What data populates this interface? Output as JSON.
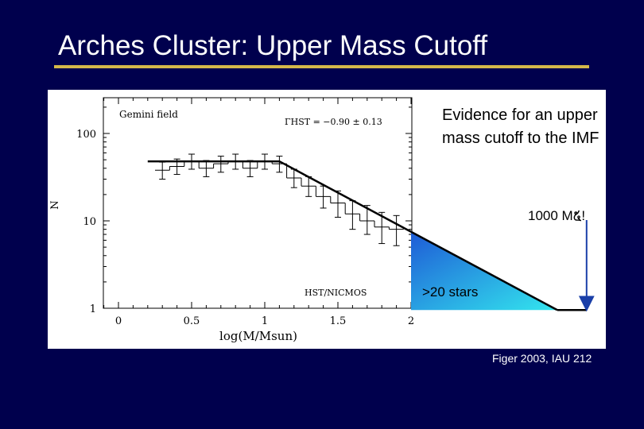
{
  "slide": {
    "title": "Arches Cluster: Upper Mass Cutoff",
    "caption": "Evidence for an upper mass cutoff to the IMF",
    "mass_label": "1000 M໕!",
    "stars_label": ">20 stars",
    "citation": "Figer 2003, IAU 212"
  },
  "colors": {
    "background": "#00004d",
    "title_rule": "#d4b84a",
    "wedge_top": "#1e5bd6",
    "wedge_bottom": "#33e6ee",
    "arrow": "#1a3fa8"
  },
  "chart_data": {
    "type": "line",
    "title": "",
    "field_label": "Gemini  field",
    "slope_label": "ΓHST  =  −0.90  ±  0.13",
    "instrument_label": "HST/NICMOS",
    "xlabel": "log(M/Msun)",
    "ylabel": "N",
    "xscale": "linear",
    "yscale": "log",
    "xlim": [
      -0.1,
      2.0
    ],
    "ylim": [
      1,
      200
    ],
    "xticks": [
      0,
      0.5,
      1,
      1.5,
      2
    ],
    "xticklabels": [
      "0",
      "0.5",
      "1",
      "1.5",
      "2"
    ],
    "yticks": [
      1,
      10,
      100
    ],
    "yticklabels": [
      "1",
      "10",
      "100"
    ],
    "histogram": {
      "x": [
        0.3,
        0.4,
        0.5,
        0.6,
        0.7,
        0.8,
        0.9,
        1.0,
        1.1,
        1.2,
        1.3,
        1.4,
        1.5,
        1.6,
        1.7,
        1.8,
        1.9
      ],
      "y": [
        38,
        42,
        48,
        40,
        45,
        48,
        40,
        48,
        45,
        31,
        25,
        19,
        16,
        12,
        10,
        8.5,
        8
      ],
      "err_low": [
        30,
        34,
        39,
        32,
        36,
        39,
        32,
        39,
        36,
        24,
        19,
        14,
        11,
        8,
        7,
        5.5,
        5.2
      ],
      "err_high": [
        47,
        51,
        58,
        49,
        55,
        58,
        49,
        58,
        55,
        39,
        32,
        25,
        22,
        17,
        15,
        12.5,
        11.5
      ]
    },
    "fit": [
      {
        "x": 0.2,
        "y": 48
      },
      {
        "x": 1.1,
        "y": 48
      },
      {
        "x": 2.0,
        "y": 7.5
      }
    ],
    "extrapolation_end_x": 3.0,
    "extrapolation_flat_end_x": 3.2,
    "arrow_x": 3.2
  }
}
